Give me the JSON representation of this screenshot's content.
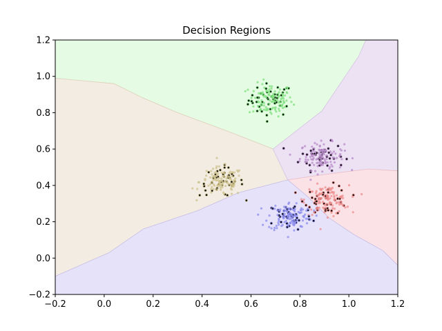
{
  "chart_data": {
    "type": "scatter",
    "title": "Decision Regions",
    "xlabel": "",
    "ylabel": "",
    "xlim": [
      -0.2,
      1.2
    ],
    "ylim": [
      -0.2,
      1.2
    ],
    "x_ticks": [
      -0.2,
      0.0,
      0.2,
      0.4,
      0.6,
      0.8,
      1.0,
      1.2
    ],
    "y_ticks": [
      -0.2,
      0.0,
      0.2,
      0.4,
      0.6,
      0.8,
      1.0,
      1.2
    ],
    "x_tick_labels": [
      "−0.2",
      "0.0",
      "0.2",
      "0.4",
      "0.6",
      "0.8",
      "1.0",
      "1.2"
    ],
    "y_tick_labels": [
      "−0.2",
      "0.0",
      "0.2",
      "0.4",
      "0.6",
      "0.8",
      "1.0",
      "1.2"
    ],
    "grid": false,
    "legend": "none",
    "regions": [
      {
        "class": "green",
        "color": "#e6fbe3",
        "edge": "#c5e5b8",
        "polygon": [
          [
            -0.2,
            1.2
          ],
          [
            1.07,
            1.2
          ],
          [
            1.04,
            1.11
          ],
          [
            0.89,
            0.81
          ],
          [
            0.69,
            0.6
          ],
          [
            0.52,
            0.69
          ],
          [
            0.3,
            0.8
          ],
          [
            0.16,
            0.88
          ],
          [
            0.04,
            0.96
          ],
          [
            -0.2,
            0.99
          ]
        ]
      },
      {
        "class": "beige",
        "color": "#f3ece3",
        "edge": "#e0cfbb",
        "polygon": [
          [
            -0.2,
            0.99
          ],
          [
            0.04,
            0.96
          ],
          [
            0.16,
            0.88
          ],
          [
            0.3,
            0.8
          ],
          [
            0.52,
            0.69
          ],
          [
            0.69,
            0.6
          ],
          [
            0.75,
            0.43
          ],
          [
            0.55,
            0.36
          ],
          [
            0.38,
            0.26
          ],
          [
            0.16,
            0.16
          ],
          [
            0.02,
            0.03
          ],
          [
            -0.2,
            -0.1
          ]
        ]
      },
      {
        "class": "purple",
        "color": "#ece2f4",
        "edge": "#d7c3e4",
        "polygon": [
          [
            1.07,
            1.2
          ],
          [
            1.2,
            1.2
          ],
          [
            1.2,
            0.48
          ],
          [
            1.08,
            0.49
          ],
          [
            0.9,
            0.46
          ],
          [
            0.75,
            0.43
          ],
          [
            0.69,
            0.6
          ],
          [
            0.89,
            0.81
          ],
          [
            1.04,
            1.11
          ]
        ]
      },
      {
        "class": "pink",
        "color": "#fae2e6",
        "edge": "#eabfc6",
        "polygon": [
          [
            0.75,
            0.43
          ],
          [
            0.9,
            0.46
          ],
          [
            1.08,
            0.49
          ],
          [
            1.2,
            0.48
          ],
          [
            1.2,
            -0.04
          ],
          [
            1.14,
            0.04
          ],
          [
            1.02,
            0.13
          ],
          [
            0.92,
            0.22
          ],
          [
            0.83,
            0.34
          ]
        ]
      },
      {
        "class": "blue",
        "color": "#e5e2fa",
        "edge": "#c7bfe7",
        "polygon": [
          [
            -0.2,
            -0.1
          ],
          [
            0.02,
            0.03
          ],
          [
            0.16,
            0.16
          ],
          [
            0.38,
            0.26
          ],
          [
            0.55,
            0.36
          ],
          [
            0.75,
            0.43
          ],
          [
            0.83,
            0.34
          ],
          [
            0.92,
            0.22
          ],
          [
            1.02,
            0.13
          ],
          [
            1.14,
            0.04
          ],
          [
            1.2,
            -0.04
          ],
          [
            1.2,
            -0.2
          ],
          [
            -0.2,
            -0.2
          ]
        ]
      }
    ],
    "series": [
      {
        "class": "green",
        "color": "#7fe07f",
        "center": [
          0.68,
          0.87
        ],
        "spread": [
          0.045,
          0.045
        ],
        "n": 150,
        "highlighted": 45
      },
      {
        "class": "purple",
        "color": "#b88cc8",
        "center": [
          0.89,
          0.56
        ],
        "spread": [
          0.045,
          0.038
        ],
        "n": 150,
        "highlighted": 45
      },
      {
        "class": "beige",
        "color": "#cdc28c",
        "center": [
          0.48,
          0.42
        ],
        "spread": [
          0.045,
          0.04
        ],
        "n": 150,
        "highlighted": 45
      },
      {
        "class": "red",
        "color": "#ee8c8c",
        "center": [
          0.91,
          0.32
        ],
        "spread": [
          0.045,
          0.04
        ],
        "n": 150,
        "highlighted": 45
      },
      {
        "class": "blue",
        "color": "#8c8cee",
        "center": [
          0.76,
          0.23
        ],
        "spread": [
          0.045,
          0.04
        ],
        "n": 150,
        "highlighted": 45
      }
    ]
  }
}
